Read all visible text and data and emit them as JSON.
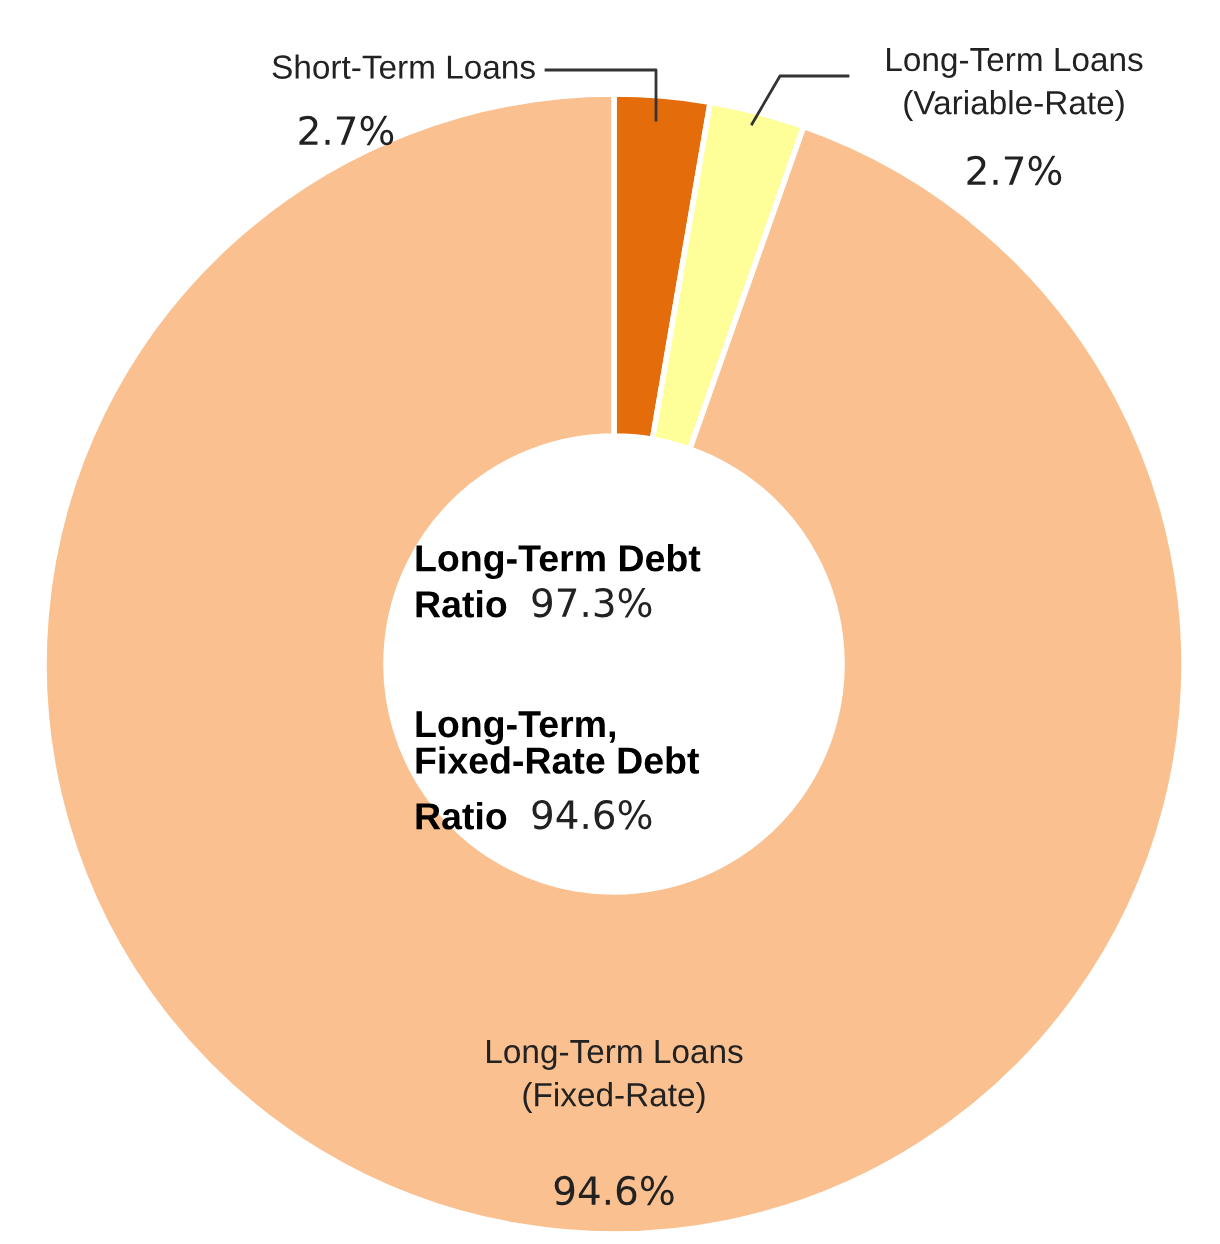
{
  "chart_data": {
    "type": "donut",
    "categories": [
      "Short-Term Loans",
      "Long-Term Loans\n(Variable-Rate)",
      "Long-Term Loans\n(Fixed-Rate)"
    ],
    "values": [
      2.7,
      2.7,
      94.6
    ],
    "value_labels": [
      "2.7%",
      "2.7%",
      "94.6%"
    ],
    "colors": [
      "#e46c0a",
      "#ffff99",
      "#fac090"
    ],
    "annotations": [
      "Long-Term Debt\nRatio",
      "97.3%",
      "Long-Term,\nFixed-Rate Debt\nRatio",
      "94.6%"
    ]
  }
}
